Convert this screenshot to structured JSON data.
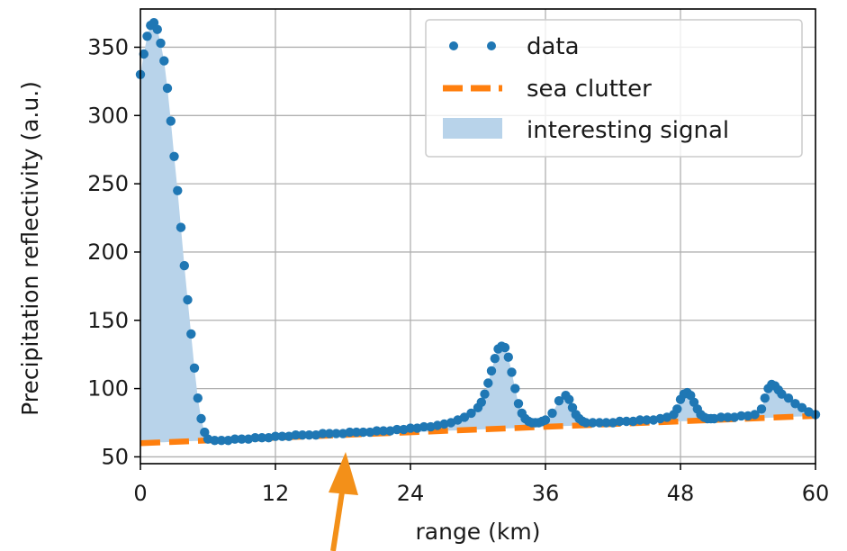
{
  "chart_data": {
    "type": "scatter",
    "title": "",
    "xlabel": "range (km)",
    "ylabel": "Precipitation reflectivity (a.u.)",
    "xlim": [
      0,
      60
    ],
    "ylim": [
      45,
      378
    ],
    "xticks": [
      0,
      12,
      24,
      36,
      48,
      60
    ],
    "yticks": [
      50,
      100,
      150,
      200,
      250,
      300,
      350
    ],
    "grid": true,
    "legend_position": "top-right",
    "legend": [
      "data",
      "sea clutter",
      "interesting signal"
    ],
    "colors": {
      "data": "#1f77b4",
      "sea_clutter": "#ff7f0e",
      "signal_fill": "#b8d3ea"
    },
    "sea_clutter": {
      "x": [
        0,
        60
      ],
      "y": [
        60,
        80
      ]
    },
    "series": [
      {
        "name": "data",
        "x": [
          0.0,
          0.3,
          0.6,
          0.9,
          1.2,
          1.5,
          1.8,
          2.1,
          2.4,
          2.7,
          3.0,
          3.3,
          3.6,
          3.9,
          4.2,
          4.5,
          4.8,
          5.1,
          5.4,
          5.7,
          6.0,
          6.6,
          7.2,
          7.8,
          8.4,
          9.0,
          9.6,
          10.2,
          10.8,
          11.4,
          12.0,
          12.6,
          13.2,
          13.8,
          14.4,
          15.0,
          15.6,
          16.2,
          16.8,
          17.4,
          18.0,
          18.6,
          19.2,
          19.8,
          20.4,
          21.0,
          21.6,
          22.2,
          22.8,
          23.4,
          24.0,
          24.6,
          25.2,
          25.8,
          26.4,
          27.0,
          27.6,
          28.2,
          28.8,
          29.4,
          30.0,
          30.3,
          30.6,
          30.9,
          31.2,
          31.5,
          31.8,
          32.1,
          32.4,
          32.7,
          33.0,
          33.3,
          33.6,
          33.9,
          34.2,
          34.5,
          34.8,
          35.1,
          35.4,
          35.7,
          36.0,
          36.6,
          37.2,
          37.8,
          38.1,
          38.4,
          38.7,
          39.0,
          39.3,
          39.6,
          40.2,
          40.8,
          41.4,
          42.0,
          42.6,
          43.2,
          43.8,
          44.4,
          45.0,
          45.6,
          46.2,
          46.8,
          47.4,
          47.7,
          48.0,
          48.3,
          48.6,
          48.9,
          49.2,
          49.5,
          49.8,
          50.1,
          50.4,
          50.7,
          51.0,
          51.6,
          52.2,
          52.8,
          53.4,
          54.0,
          54.6,
          55.2,
          55.5,
          55.8,
          56.1,
          56.4,
          56.7,
          57.0,
          57.6,
          58.2,
          58.8,
          59.4,
          60.0
        ],
        "y": [
          330,
          345,
          358,
          366,
          368,
          363,
          353,
          340,
          320,
          296,
          270,
          245,
          218,
          190,
          165,
          140,
          115,
          93,
          78,
          68,
          63,
          62,
          62,
          62,
          63,
          63,
          63,
          64,
          64,
          64,
          65,
          65,
          65,
          66,
          66,
          66,
          66,
          67,
          67,
          67,
          67,
          68,
          68,
          68,
          68,
          69,
          69,
          69,
          70,
          70,
          71,
          71,
          72,
          72,
          73,
          74,
          75,
          77,
          79,
          82,
          86,
          90,
          96,
          104,
          113,
          122,
          129,
          131,
          130,
          123,
          112,
          100,
          89,
          82,
          78,
          76,
          75,
          75,
          75,
          76,
          77,
          82,
          91,
          95,
          92,
          86,
          81,
          78,
          76,
          75,
          75,
          75,
          75,
          75,
          76,
          76,
          76,
          77,
          77,
          77,
          78,
          79,
          81,
          85,
          92,
          96,
          97,
          95,
          90,
          85,
          81,
          79,
          78,
          78,
          78,
          79,
          79,
          79,
          80,
          80,
          81,
          85,
          93,
          100,
          103,
          102,
          99,
          96,
          93,
          89,
          86,
          83,
          81
        ]
      }
    ]
  }
}
